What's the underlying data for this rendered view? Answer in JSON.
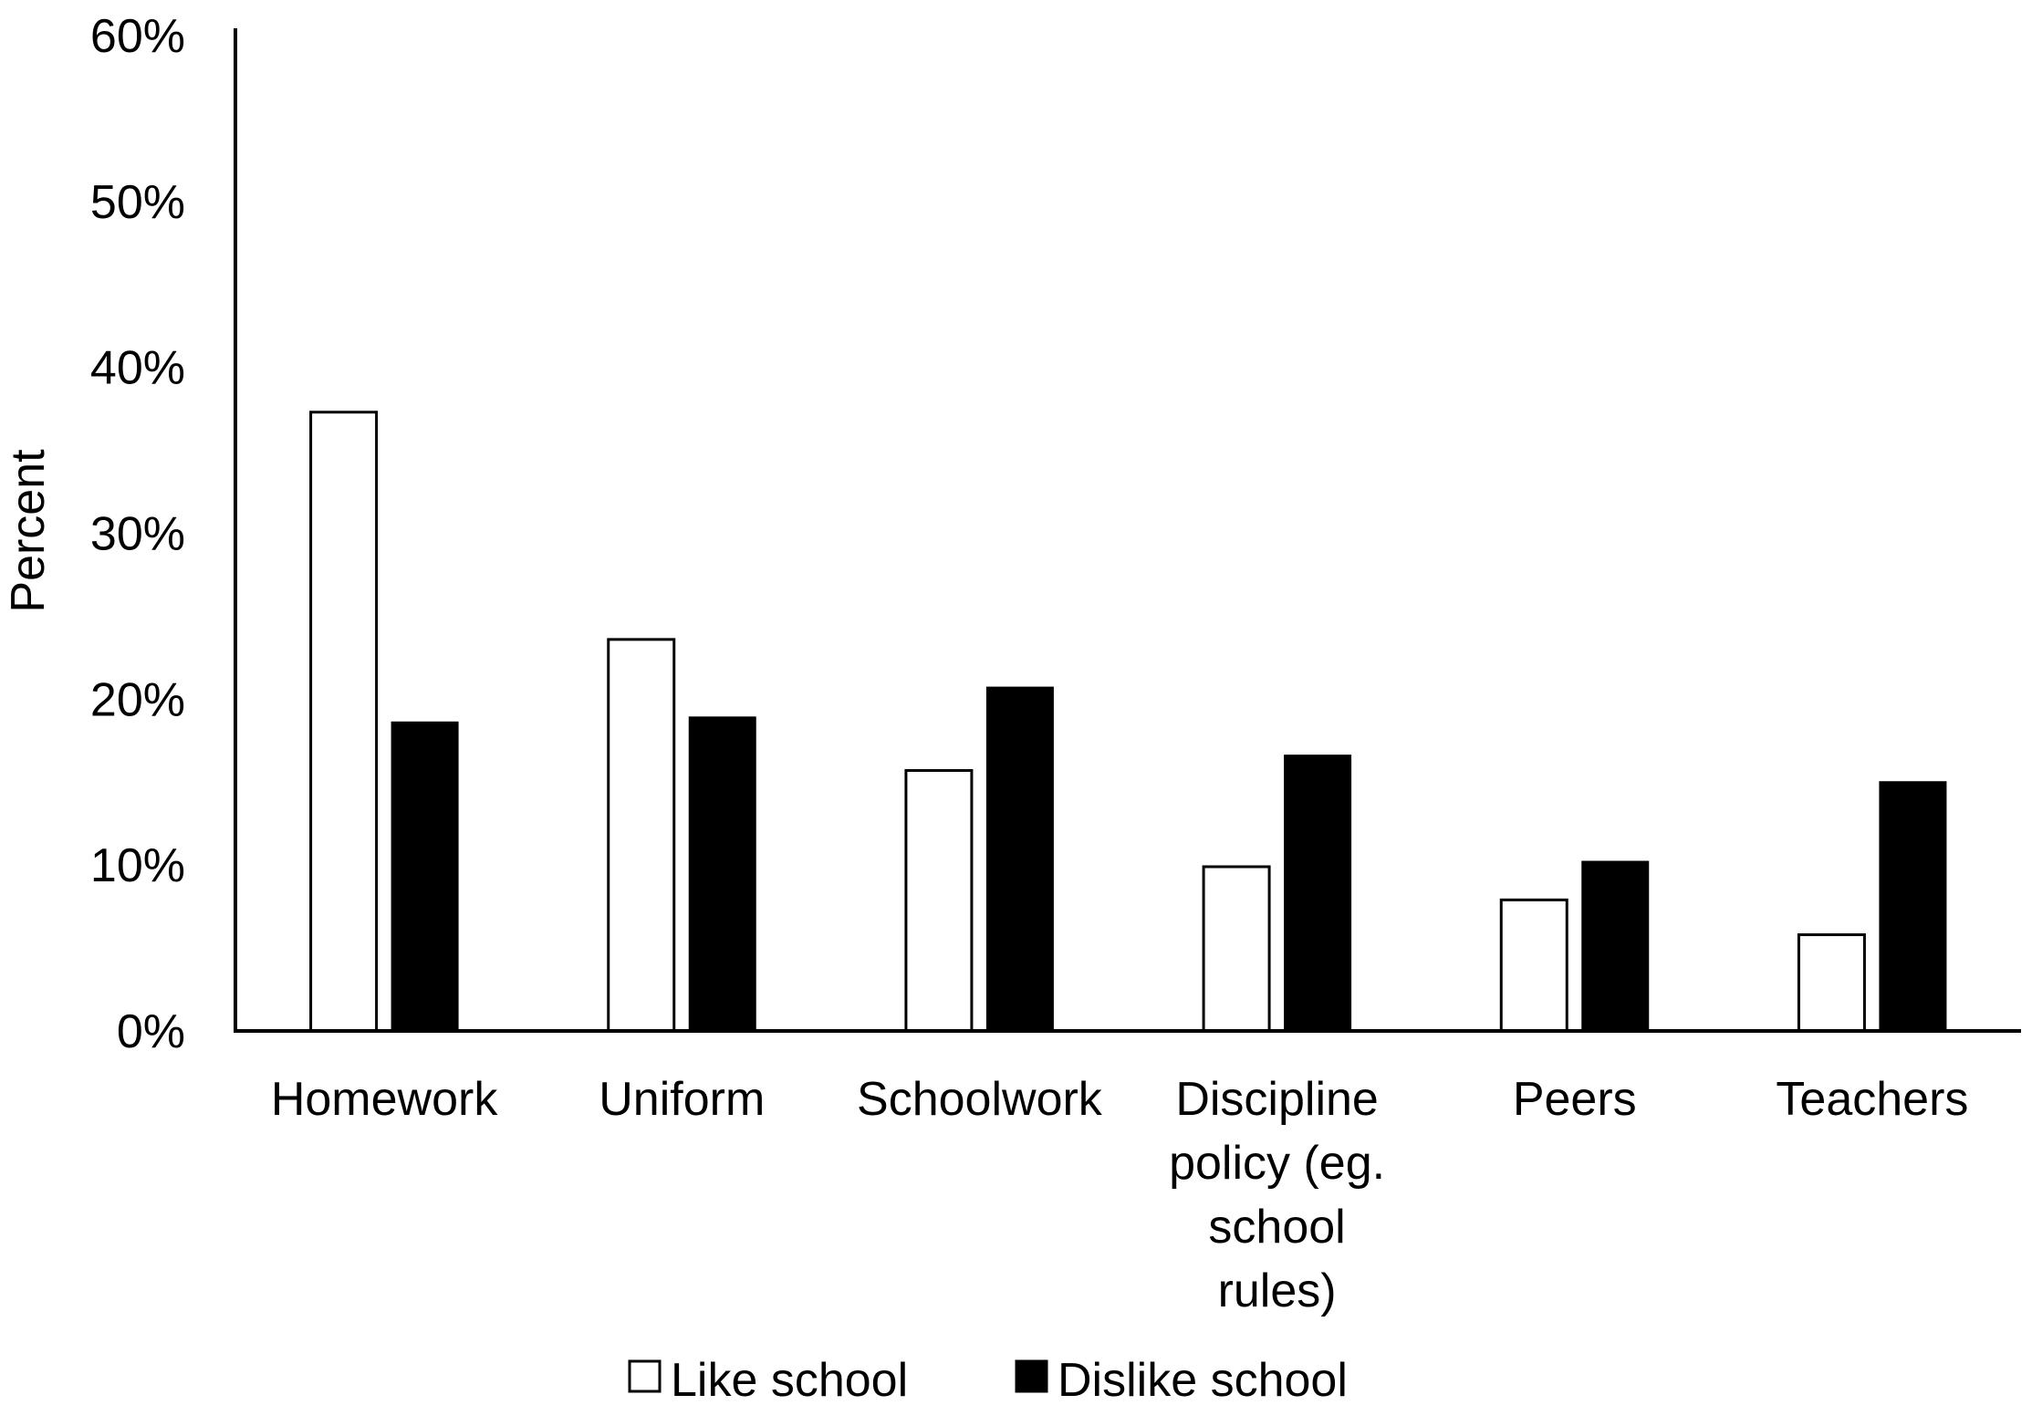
{
  "chart_data": {
    "type": "bar",
    "title": "",
    "xlabel": "",
    "ylabel": "Percent",
    "ylim": [
      0,
      60
    ],
    "y_ticks": [
      "0%",
      "10%",
      "20%",
      "30%",
      "40%",
      "50%",
      "60%"
    ],
    "grid": false,
    "legend_position": "bottom",
    "categories": [
      [
        "Homework"
      ],
      [
        "Uniform"
      ],
      [
        "Schoolwork"
      ],
      [
        "Discipline",
        "policy (eg.",
        "school",
        "rules)"
      ],
      [
        "Peers"
      ],
      [
        "Teachers"
      ]
    ],
    "series": [
      {
        "name": "Like school",
        "color": "#ffffff",
        "values": [
          37.3,
          23.6,
          15.7,
          9.9,
          7.9,
          5.8
        ]
      },
      {
        "name": "Dislike school",
        "color": "#000000",
        "values": [
          18.6,
          18.9,
          20.7,
          16.6,
          10.2,
          15.0
        ]
      }
    ]
  }
}
